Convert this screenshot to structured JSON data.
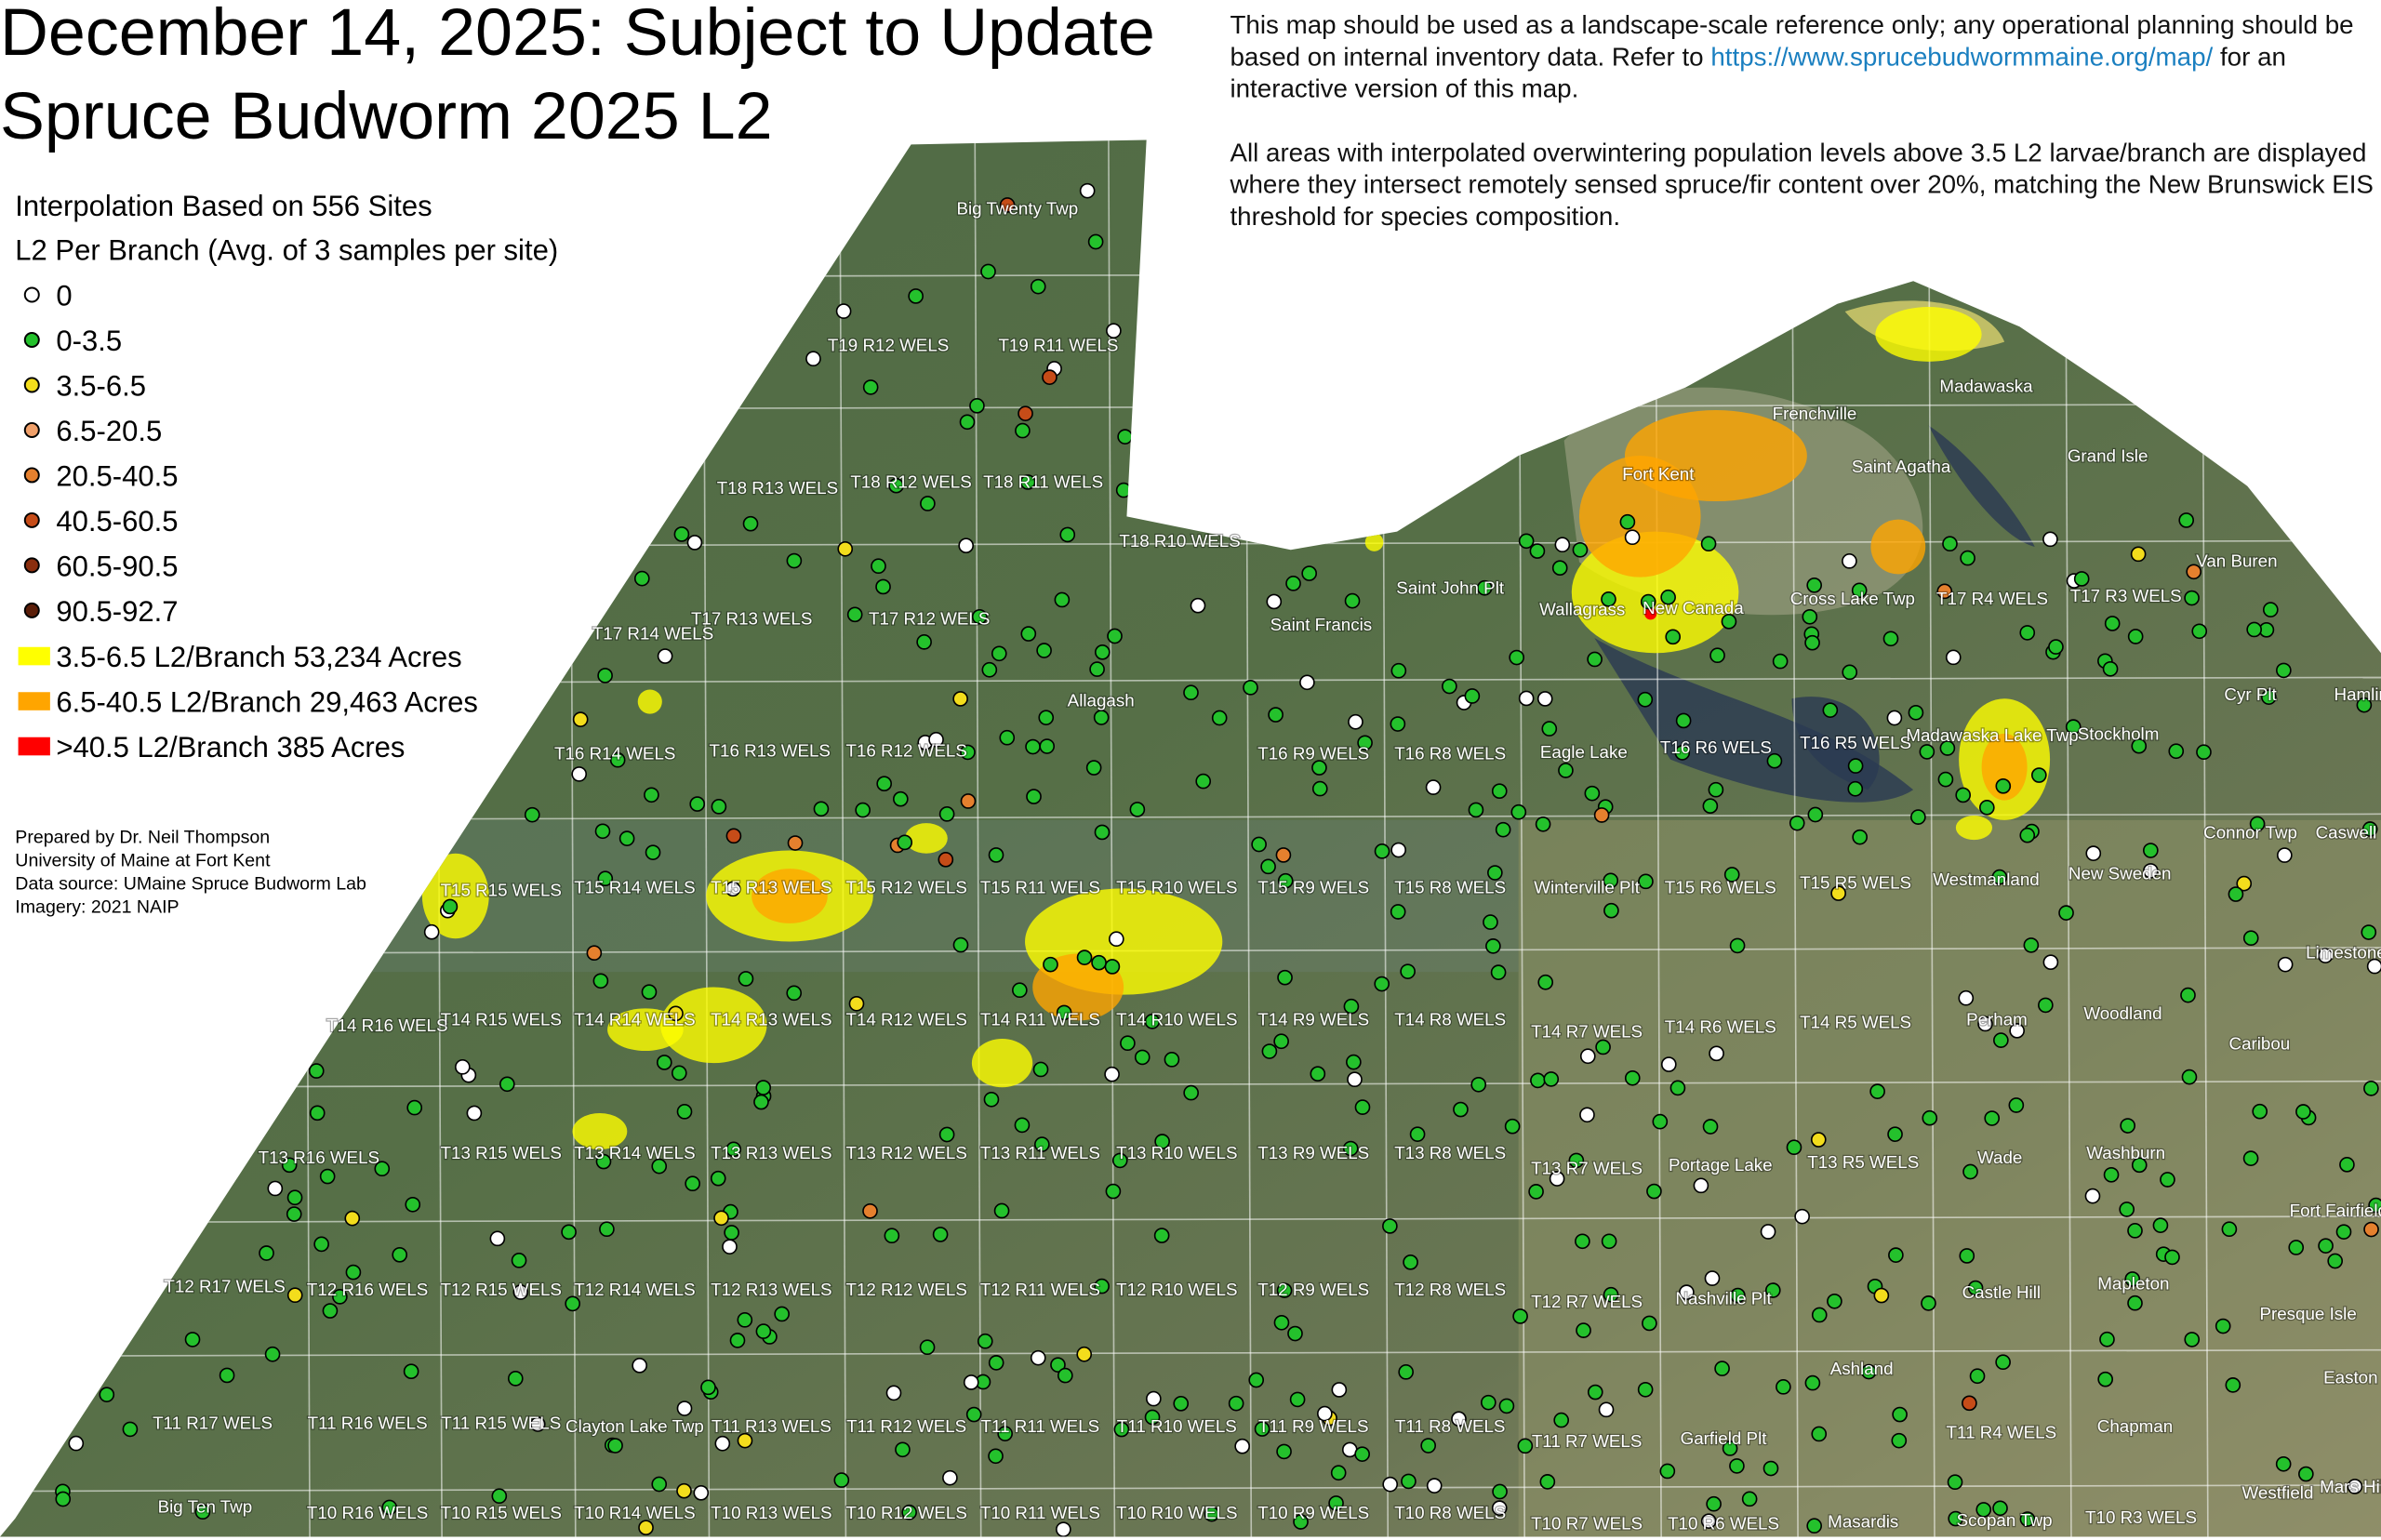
{
  "header": {
    "title_line1": "December 14, 2025: Subject to Update",
    "title_line2": "Spruce Budworm 2025 L2"
  },
  "legend": {
    "heading": "Interpolation Based on 556 Sites",
    "subheading": "L2 Per Branch (Avg. of 3 samples per site)",
    "classes": [
      {
        "label": "0",
        "color": "#ffffff"
      },
      {
        "label": "0-3.5",
        "color": "#24c12c"
      },
      {
        "label": "3.5-6.5",
        "color": "#f3dd1c"
      },
      {
        "label": "6.5-20.5",
        "color": "#f0a06a"
      },
      {
        "label": "20.5-40.5",
        "color": "#e5802e"
      },
      {
        "label": "40.5-60.5",
        "color": "#c64c18"
      },
      {
        "label": "60.5-90.5",
        "color": "#8a2e0e"
      },
      {
        "label": "90.5-92.7",
        "color": "#5a1d08"
      }
    ],
    "areas": [
      {
        "label": "3.5-6.5 L2/Branch 53,234 Acres",
        "color": "#ffff00"
      },
      {
        "label": "6.5-40.5 L2/Branch 29,463 Acres",
        "color": "#ffa500"
      },
      {
        "label": ">40.5 L2/Branch 385 Acres",
        "color": "#ff0000"
      }
    ]
  },
  "credits": [
    "Prepared by Dr. Neil Thompson",
    "University of Maine at Fort Kent",
    "Data source: UMaine Spruce Budworm Lab",
    "Imagery: 2021 NAIP"
  ],
  "notes": {
    "p1_before": "This map should be used as a landscape-scale reference only; any operational planning should be based on internal inventory data. Refer to ",
    "p1_link": "https://www.sprucebudwormmaine.org/map/",
    "p1_after": " for an interactive version of this map.",
    "p2": "All areas with interpolated overwintering population levels above 3.5 L2 larvae/branch are displayed where they intersect remotely sensed spruce/fir content over 20%, matching the New Brunswick EIS threshold for species composition."
  },
  "map": {
    "places": [
      "Big Twenty Twp",
      "T19 R12 WELS",
      "T19 R11 WELS",
      "T18 R13 WELS",
      "T18 R12 WELS",
      "T18 R11 WELS",
      "T18 R10 WELS",
      "T17 R14 WELS",
      "T17 R13 WELS",
      "T17 R12 WELS",
      "Saint Francis",
      "Saint John Plt",
      "Allagash",
      "Wallagrass",
      "New Canada",
      "Cross Lake Twp",
      "T17 R4 WELS",
      "T17 R3 WELS",
      "Van Buren",
      "Grand Isle",
      "Madawaska",
      "Frenchville",
      "Saint Agatha",
      "Fort Kent",
      "T16 R14 WELS",
      "T16 R13 WELS",
      "T16 R12 WELS",
      "T16 R9 WELS",
      "T16 R8 WELS",
      "Eagle Lake",
      "T16 R6 WELS",
      "T16 R5 WELS",
      "Madawaska Lake Twp",
      "Stockholm",
      "Cyr Plt",
      "Hamlin",
      "T15 R15 WELS",
      "T15 R14 WELS",
      "T15 R13 WELS",
      "T15 R12 WELS",
      "T15 R11 WELS",
      "T15 R10 WELS",
      "T15 R9 WELS",
      "T15 R8 WELS",
      "Winterville Plt",
      "T15 R6 WELS",
      "T15 R5 WELS",
      "Westmanland",
      "New Sweden",
      "Connor Twp",
      "Caswell",
      "Limestone",
      "T14 R16 WELS",
      "T14 R15 WELS",
      "T14 R14 WELS",
      "T14 R13 WELS",
      "T14 R12 WELS",
      "T14 R11 WELS",
      "T14 R10 WELS",
      "T14 R9 WELS",
      "T14 R8 WELS",
      "T14 R7 WELS",
      "T14 R6 WELS",
      "T14 R5 WELS",
      "Perham",
      "Woodland",
      "Caribou",
      "T13 R16 WELS",
      "T13 R15 WELS",
      "T13 R14 WELS",
      "T13 R13 WELS",
      "T13 R12 WELS",
      "T13 R11 WELS",
      "T13 R10 WELS",
      "T13 R9 WELS",
      "T13 R8 WELS",
      "T13 R7 WELS",
      "Portage Lake",
      "T13 R5 WELS",
      "Wade",
      "Washburn",
      "Fort Fairfield",
      "T12 R17 WELS",
      "T12 R16 WELS",
      "T12 R15 WELS",
      "T12 R14 WELS",
      "T12 R13 WELS",
      "T12 R12 WELS",
      "T12 R11 WELS",
      "T12 R10 WELS",
      "T12 R9 WELS",
      "T12 R8 WELS",
      "T12 R7 WELS",
      "Nashville Plt",
      "Castle Hill",
      "Mapleton",
      "Presque Isle",
      "Ashland",
      "Easton",
      "T11 R17 WELS",
      "T11 R16 WELS",
      "T11 R15 WELS",
      "Clayton Lake Twp",
      "T11 R13 WELS",
      "T11 R12 WELS",
      "T11 R11 WELS",
      "T11 R10 WELS",
      "T11 R9 WELS",
      "T11 R8 WELS",
      "T11 R7 WELS",
      "Garfield Plt",
      "T11 R4 WELS",
      "Chapman",
      "Mars Hill",
      "Big Ten Twp",
      "T10 R16 WELS",
      "T10 R15 WELS",
      "T10 R14 WELS",
      "T10 R13 WELS",
      "T10 R12 WELS",
      "T10 R11 WELS",
      "T10 R10 WELS",
      "T10 R9 WELS",
      "T10 R8 WELS",
      "T10 R7 WELS",
      "T10 R6 WELS",
      "Masardis",
      "Scopan Twp",
      "T10 R3 WELS",
      "Westfield"
    ]
  }
}
